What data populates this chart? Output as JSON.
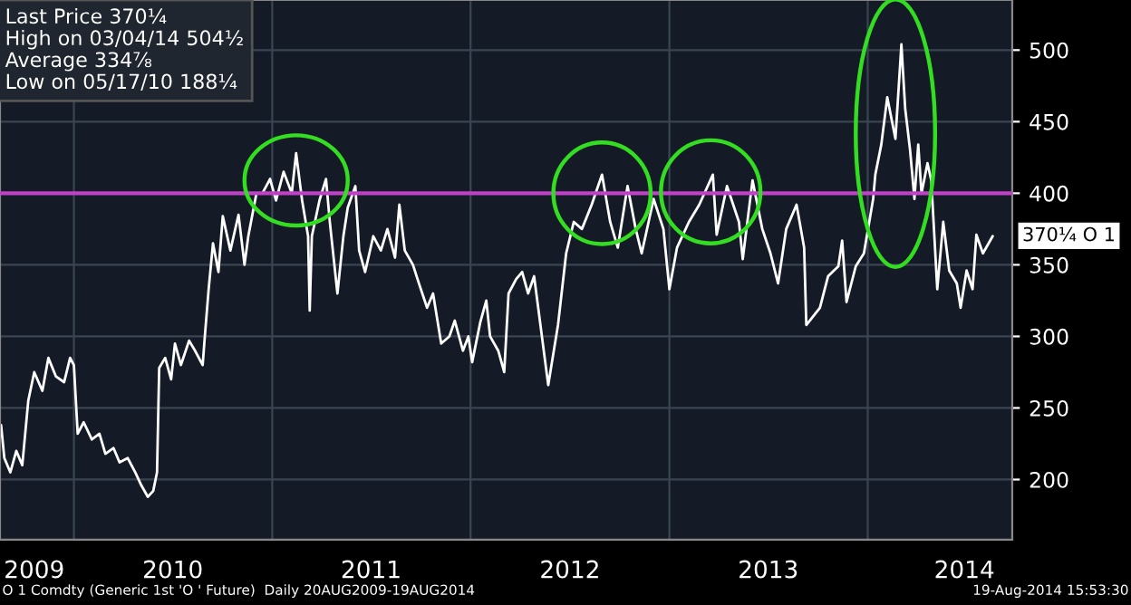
{
  "chart_data": {
    "type": "line",
    "x": [
      "2009-08-20",
      "2009-08-26",
      "2009-09-06",
      "2009-09-17",
      "2009-09-28",
      "2009-10-09",
      "2009-10-20",
      "2009-11-04",
      "2009-11-15",
      "2009-11-29",
      "2009-12-14",
      "2009-12-25",
      "2010-01-01",
      "2010-01-08",
      "2010-01-19",
      "2010-02-03",
      "2010-02-17",
      "2010-02-28",
      "2010-03-15",
      "2010-03-26",
      "2010-04-10",
      "2010-04-24",
      "2010-05-05",
      "2010-05-17",
      "2010-05-27",
      "2010-06-03",
      "2010-06-07",
      "2010-06-18",
      "2010-06-29",
      "2010-07-06",
      "2010-07-17",
      "2010-08-01",
      "2010-08-12",
      "2010-08-26",
      "2010-08-30",
      "2010-09-06",
      "2010-09-14",
      "2010-09-24",
      "2010-10-02",
      "2010-10-16",
      "2010-10-31",
      "2010-11-11",
      "2010-11-18",
      "2010-12-03",
      "2010-12-14",
      "2010-12-28",
      "2011-01-08",
      "2011-01-22",
      "2011-02-06",
      "2011-02-14",
      "2011-02-25",
      "2011-03-08",
      "2011-03-11",
      "2011-03-15",
      "2011-03-29",
      "2011-04-10",
      "2011-04-17",
      "2011-05-01",
      "2011-05-12",
      "2011-05-20",
      "2011-06-03",
      "2011-06-10",
      "2011-06-21",
      "2011-07-06",
      "2011-07-20",
      "2011-08-01",
      "2011-08-15",
      "2011-08-23",
      "2011-09-02",
      "2011-09-17",
      "2011-09-28",
      "2011-10-13",
      "2011-10-24",
      "2011-11-08",
      "2011-11-23",
      "2011-12-03",
      "2011-12-18",
      "2011-12-28",
      "2012-01-04",
      "2012-01-19",
      "2012-01-30",
      "2012-02-06",
      "2012-02-21",
      "2012-03-03",
      "2012-03-11",
      "2012-03-25",
      "2012-04-05",
      "2012-04-16",
      "2012-04-27",
      "2012-05-23",
      "2012-06-10",
      "2012-06-25",
      "2012-07-09",
      "2012-07-24",
      "2012-08-11",
      "2012-08-30",
      "2012-09-14",
      "2012-09-28",
      "2012-10-16",
      "2012-10-31",
      "2012-11-11",
      "2012-12-03",
      "2012-12-21",
      "2013-01-01",
      "2013-01-15",
      "2013-02-06",
      "2013-02-25",
      "2013-03-22",
      "2013-03-29",
      "2013-04-17",
      "2013-05-09",
      "2013-05-16",
      "2013-06-03",
      "2013-06-21",
      "2013-07-06",
      "2013-07-20",
      "2013-08-04",
      "2013-08-23",
      "2013-09-06",
      "2013-09-10",
      "2013-10-05",
      "2013-10-20",
      "2013-11-08",
      "2013-11-15",
      "2013-11-23",
      "2013-12-10",
      "2013-12-25",
      "2014-01-11",
      "2014-01-15",
      "2014-01-26",
      "2014-02-06",
      "2014-02-21",
      "2014-03-04",
      "2014-03-11",
      "2014-03-20",
      "2014-03-28",
      "2014-04-04",
      "2014-04-10",
      "2014-04-21",
      "2014-04-28",
      "2014-05-09",
      "2014-05-20",
      "2014-05-31",
      "2014-06-14",
      "2014-06-21",
      "2014-07-02",
      "2014-07-13",
      "2014-07-20",
      "2014-08-01",
      "2014-08-19"
    ],
    "series": [
      {
        "color": "#ffffff",
        "values": [
          238,
          215,
          205,
          220,
          210,
          255,
          275,
          262,
          285,
          272,
          268,
          285,
          280,
          232,
          240,
          228,
          232,
          218,
          222,
          212,
          215,
          205,
          196,
          188,
          192,
          205,
          278,
          285,
          270,
          295,
          280,
          297,
          290,
          280,
          300,
          333,
          365,
          345,
          384,
          360,
          385,
          350,
          370,
          400,
          400,
          410,
          395,
          415,
          400,
          428,
          395,
          370,
          318,
          370,
          395,
          410,
          380,
          330,
          370,
          390,
          405,
          360,
          345,
          370,
          360,
          375,
          355,
          392,
          360,
          350,
          337,
          320,
          330,
          295,
          300,
          311,
          290,
          300,
          282,
          310,
          325,
          300,
          290,
          275,
          330,
          340,
          345,
          330,
          342,
          266,
          308,
          358,
          380,
          375,
          392,
          413,
          380,
          362,
          405,
          375,
          358,
          396,
          375,
          333,
          362,
          380,
          392,
          413,
          371,
          405,
          380,
          354,
          409,
          375,
          358,
          337,
          375,
          392,
          362,
          308,
          320,
          342,
          349,
          367,
          324,
          349,
          358,
          396,
          413,
          434,
          467,
          438,
          504,
          459,
          430,
          396,
          434,
          400,
          421,
          409,
          333,
          380,
          346,
          337,
          320,
          346,
          333,
          371,
          358,
          370
        ]
      }
    ],
    "xlim": [
      "2009-08-18",
      "2014-09-24"
    ],
    "ylim": [
      158,
      535
    ],
    "xticks": [
      {
        "value": "2009-10-20",
        "label": "2009"
      },
      {
        "value": "2010-01-01",
        "label": null
      },
      {
        "value": "2010-07-02",
        "label": "2010"
      },
      {
        "value": "2011-01-01",
        "label": null
      },
      {
        "value": "2011-07-02",
        "label": "2011"
      },
      {
        "value": "2012-01-01",
        "label": null
      },
      {
        "value": "2012-07-02",
        "label": "2012"
      },
      {
        "value": "2013-01-01",
        "label": null
      },
      {
        "value": "2013-07-02",
        "label": "2013"
      },
      {
        "value": "2014-01-01",
        "label": null
      },
      {
        "value": "2014-06-28",
        "label": "2014"
      }
    ],
    "yticks": [
      200,
      250,
      300,
      350,
      400,
      450,
      500
    ],
    "grid": true,
    "ref_lines": [
      {
        "axis": "y",
        "value": 400,
        "color": "#c040c8"
      }
    ],
    "annotations": [
      "Last Price 370¼",
      "High on 03/04/14 504½",
      "Average 334⅞",
      "Low on 05/17/10 188¼",
      {
        "text": "370¼ O 1",
        "x": "2014-08-19",
        "y": 370.25
      },
      "O 1 Comdty (Generic 1st 'O ' Future)  Daily 20AUG2009-19AUG2014",
      "19-Aug-2014 15:53:30"
    ]
  }
}
